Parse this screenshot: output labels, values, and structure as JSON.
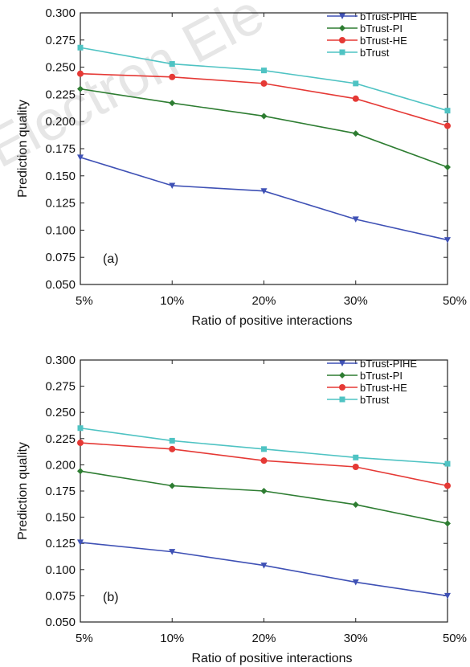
{
  "watermark": "Electron Ele",
  "chart_data": [
    {
      "type": "line",
      "panel_label": "(a)",
      "categories": [
        "5%",
        "10%",
        "20%",
        "30%",
        "50%"
      ],
      "series": [
        {
          "name": "bTrust-PIHE",
          "color": "#3f51b5",
          "marker": "triangle-down",
          "values": [
            0.167,
            0.141,
            0.136,
            0.11,
            0.091
          ]
        },
        {
          "name": "bTrust-PI",
          "color": "#2e7d32",
          "marker": "diamond",
          "values": [
            0.23,
            0.217,
            0.205,
            0.189,
            0.158
          ]
        },
        {
          "name": "bTrust-HE",
          "color": "#e53935",
          "marker": "circle",
          "values": [
            0.244,
            0.241,
            0.235,
            0.221,
            0.196
          ]
        },
        {
          "name": "bTrust",
          "color": "#4fc3c3",
          "marker": "square",
          "values": [
            0.268,
            0.253,
            0.247,
            0.235,
            0.21
          ]
        }
      ],
      "xlabel": "Ratio of positive interactions",
      "ylabel": "Prediction quality",
      "ylim": [
        0.05,
        0.3
      ],
      "yticks": [
        "0.050",
        "0.075",
        "0.100",
        "0.125",
        "0.150",
        "0.175",
        "0.200",
        "0.225",
        "0.250",
        "0.275",
        "0.300"
      ],
      "grid": false,
      "legend_position": "top-right"
    },
    {
      "type": "line",
      "panel_label": "(b)",
      "categories": [
        "5%",
        "10%",
        "20%",
        "30%",
        "50%"
      ],
      "series": [
        {
          "name": "bTrust-PIHE",
          "color": "#3f51b5",
          "marker": "triangle-down",
          "values": [
            0.126,
            0.117,
            0.104,
            0.088,
            0.075
          ]
        },
        {
          "name": "bTrust-PI",
          "color": "#2e7d32",
          "marker": "diamond",
          "values": [
            0.194,
            0.18,
            0.175,
            0.162,
            0.144
          ]
        },
        {
          "name": "bTrust-HE",
          "color": "#e53935",
          "marker": "circle",
          "values": [
            0.221,
            0.215,
            0.204,
            0.198,
            0.18
          ]
        },
        {
          "name": "bTrust",
          "color": "#4fc3c3",
          "marker": "square",
          "values": [
            0.235,
            0.223,
            0.215,
            0.207,
            0.201
          ]
        }
      ],
      "xlabel": "Ratio of positive interactions",
      "ylabel": "Prediction quality",
      "ylim": [
        0.05,
        0.3
      ],
      "yticks": [
        "0.050",
        "0.075",
        "0.100",
        "0.125",
        "0.150",
        "0.175",
        "0.200",
        "0.225",
        "0.250",
        "0.275",
        "0.300"
      ],
      "grid": false,
      "legend_position": "top-right"
    }
  ]
}
